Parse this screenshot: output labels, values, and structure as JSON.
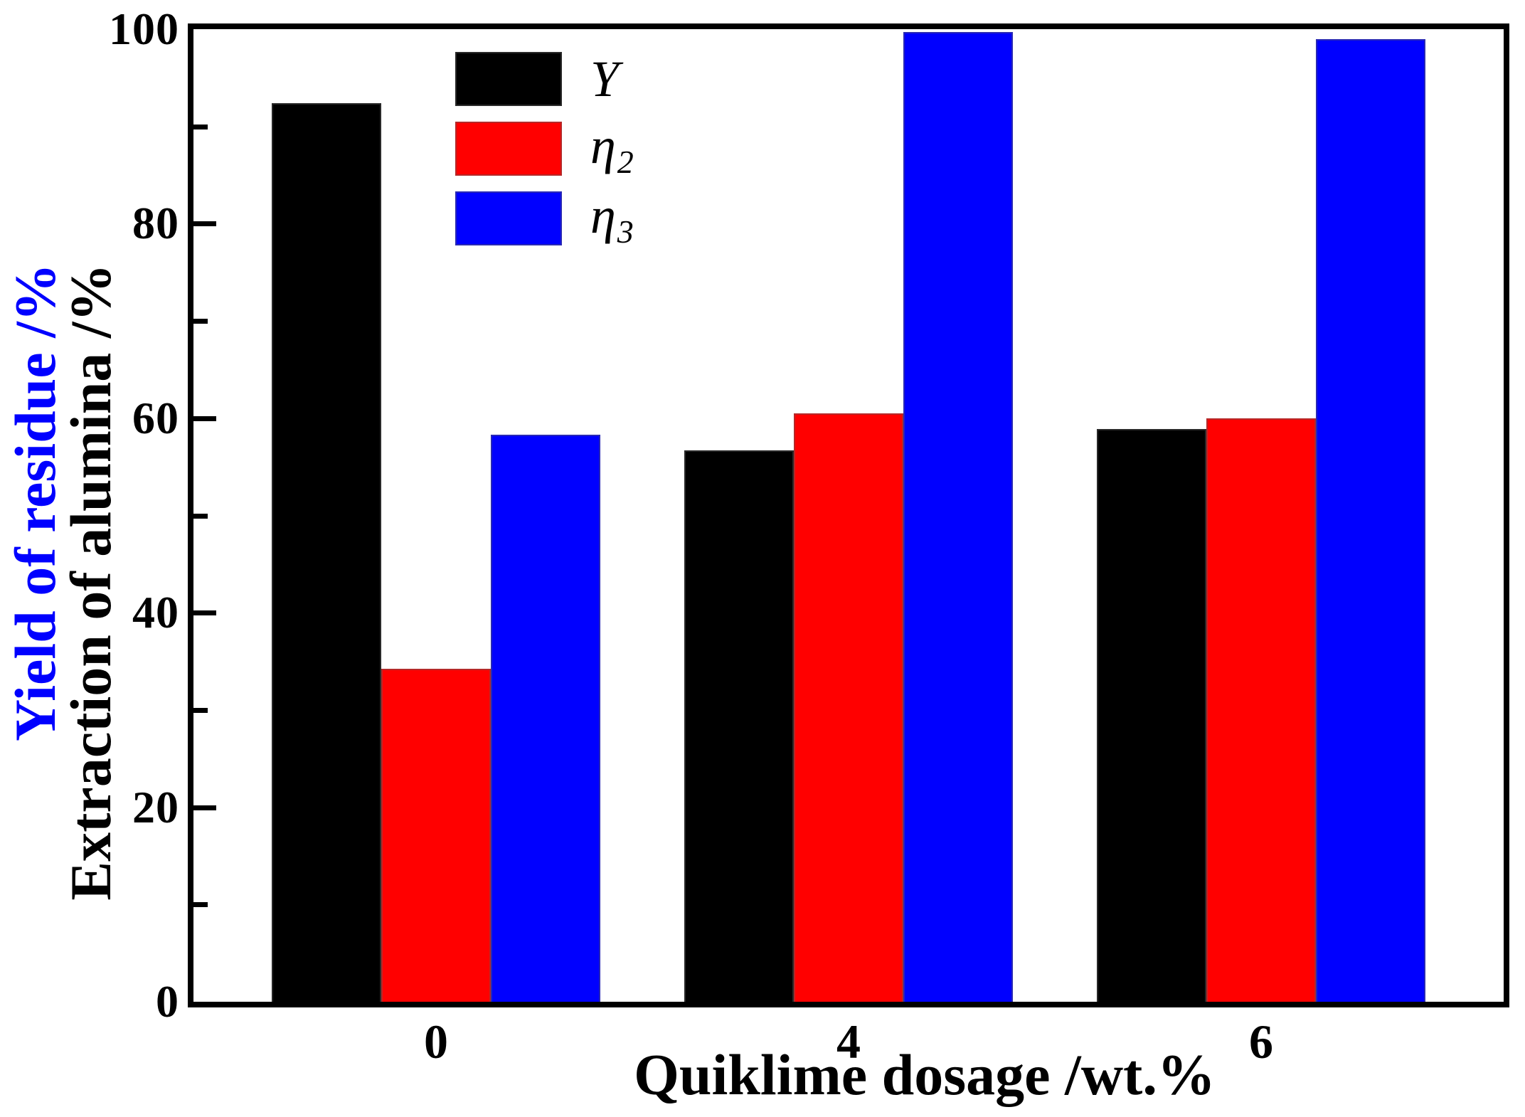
{
  "chart_data": {
    "type": "bar",
    "categories": [
      "0",
      "4",
      "6"
    ],
    "series": [
      {
        "name": "Y",
        "name_sub": "",
        "color": "#000000",
        "values": [
          92.4,
          56.7,
          58.9
        ]
      },
      {
        "name": "η",
        "name_sub": "2",
        "color": "#ff0000",
        "values": [
          34.2,
          60.5,
          60.0
        ]
      },
      {
        "name": "η",
        "name_sub": "3",
        "color": "#0000ff",
        "values": [
          58.3,
          99.7,
          99.0
        ]
      }
    ],
    "title": "",
    "xlabel": "Quiklime dosage /wt.%",
    "ylabel_blue": "Yield of residue /%",
    "ylabel_black": "Extraction of alumina /%",
    "ylim": [
      0,
      100
    ],
    "y_major_ticks": [
      0,
      20,
      40,
      60,
      80,
      100
    ],
    "y_minor_ticks": [
      10,
      30,
      50,
      70,
      90
    ],
    "legend_position": "upper-left-inside",
    "grid": false,
    "axis_color": "#000000",
    "ylabel_blue_color": "#0000ff",
    "ylabel_black_color": "#000000"
  }
}
